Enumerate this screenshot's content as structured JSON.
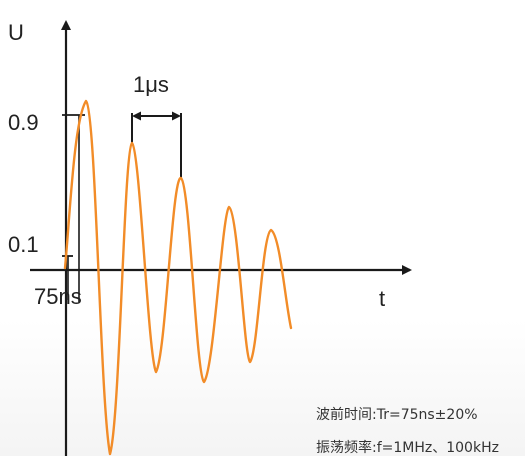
{
  "axes": {
    "y_label": "U",
    "x_label": "t"
  },
  "levels": {
    "high": "0.9",
    "low": "0.1"
  },
  "rise_time_label": "75ns",
  "period_label": "1μs",
  "params": {
    "rise_time": "波前时间:Tr=75ns±20%",
    "frequency": "振荡频率:f=1MHz、100kHz"
  },
  "colors": {
    "wave": "#F28C28",
    "axis": "#1a1a1a",
    "text": "#222222"
  },
  "waveform": {
    "type": "damped-oscillation",
    "peaks": [
      1.0,
      0.78,
      0.58,
      0.42,
      0.3
    ],
    "troughs": [
      -0.55,
      -1.15,
      -0.95,
      -0.72,
      -0.62
    ]
  }
}
